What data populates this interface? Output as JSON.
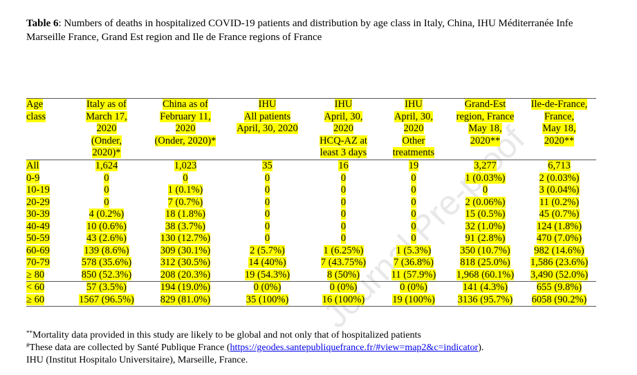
{
  "title": {
    "label": "Table 6",
    "line1": ": Numbers of deaths in hospitalized COVID-19 patients and distribution by age class in Italy, China, IHU Méditerranée Infe",
    "line2": "Marseille France, Grand Est region and Ile de France regions of France"
  },
  "watermark": "Journal Pre-proof",
  "columns": [
    [
      "Age",
      "class"
    ],
    [
      "Italy as of",
      "March 17,",
      "2020",
      "(Onder,",
      "2020)*"
    ],
    [
      "China as of",
      "February 11,",
      "2020",
      "(Onder, 2020)*"
    ],
    [
      "IHU",
      "All patients",
      "April, 30, 2020"
    ],
    [
      "IHU",
      "April, 30,",
      "2020",
      "HCQ-AZ at",
      "least 3 days"
    ],
    [
      "IHU",
      "April, 30,",
      "2020",
      "Other",
      "treatments"
    ],
    [
      "Grand-Est",
      "region, France",
      "May 18,",
      "2020**"
    ],
    [
      "Ile-de-France,",
      "France,",
      "May 18,",
      "2020**"
    ]
  ],
  "rows": [
    [
      "All",
      "1,624",
      "1,023",
      "35",
      "16",
      "19",
      "3,277",
      "6,713"
    ],
    [
      "0-9",
      "0",
      "0",
      "0",
      "0",
      "0",
      "1 (0.03%)",
      "2 (0.03%)"
    ],
    [
      "10-19",
      "0",
      "1 (0.1%)",
      "0",
      "0",
      "0",
      "0",
      "3 (0.04%)"
    ],
    [
      "20-29",
      "0",
      "7 (0.7%)",
      "0",
      "0",
      "0",
      "2 (0.06%)",
      "11 (0.2%)"
    ],
    [
      "30-39",
      "4 (0.2%)",
      "18 (1.8%)",
      "0",
      "0",
      "0",
      "15 (0.5%)",
      "45 (0.7%)"
    ],
    [
      "40-49",
      "10 (0.6%)",
      "38 (3.7%)",
      "0",
      "0",
      "0",
      "32 (1.0%)",
      "124 (1.8%)"
    ],
    [
      "50-59",
      "43 (2.6%)",
      "130 (12.7%)",
      "0",
      "0",
      "0",
      "91 (2.8%)",
      "470 (7.0%)"
    ],
    [
      "60-69",
      "139 (8.6%)",
      "309 (30.1%)",
      "2 (5.7%)",
      "1 (6.25%)",
      "1 (5.3%)",
      "350 (10.7%)",
      "982 (14.6%)"
    ],
    [
      "70-79",
      "578 (35.6%)",
      "312 (30.5%)",
      "14 (40%)",
      "7 (43.75%)",
      "7 (36.8%)",
      "818 (25.0%)",
      "1,586 (23.6%)"
    ],
    [
      "≥ 80",
      "850 (52.3%)",
      "208 (20.3%)",
      "19 (54.3%)",
      "8 (50%)",
      "11 (57.9%)",
      "1,968 (60.1%)",
      "3,490 (52.0%)"
    ]
  ],
  "summary_rows": [
    [
      "< 60",
      "57 (3.5%)",
      "194 (19.0%)",
      "0 (0%)",
      "0 (0%)",
      "0 (0%)",
      "141 (4.3%)",
      "655 (9.8%)"
    ],
    [
      "≥ 60",
      "1567 (96.5%)",
      "829 (81.0%)",
      "35 (100%)",
      "16 (100%)",
      "19 (100%)",
      "3136 (95.7%)",
      "6058 (90.2%)"
    ]
  ],
  "footnotes": {
    "f1_mark": "**",
    "f1_text": "Mortality data provided in this study are likely to be global and not only that of hospitalized patients",
    "f2_mark": "#",
    "f2_text_before": "These data are collected by Santé Publique France (",
    "f2_link": "https://geodes.santepubliquefrance.fr/#view=map2&c=indicator",
    "f2_text_after": ").",
    "f3_text": "IHU (Institut Hospitalo Universitaire), Marseille, France."
  },
  "colors": {
    "highlight": "#ffff00",
    "link": "#0000ee"
  }
}
